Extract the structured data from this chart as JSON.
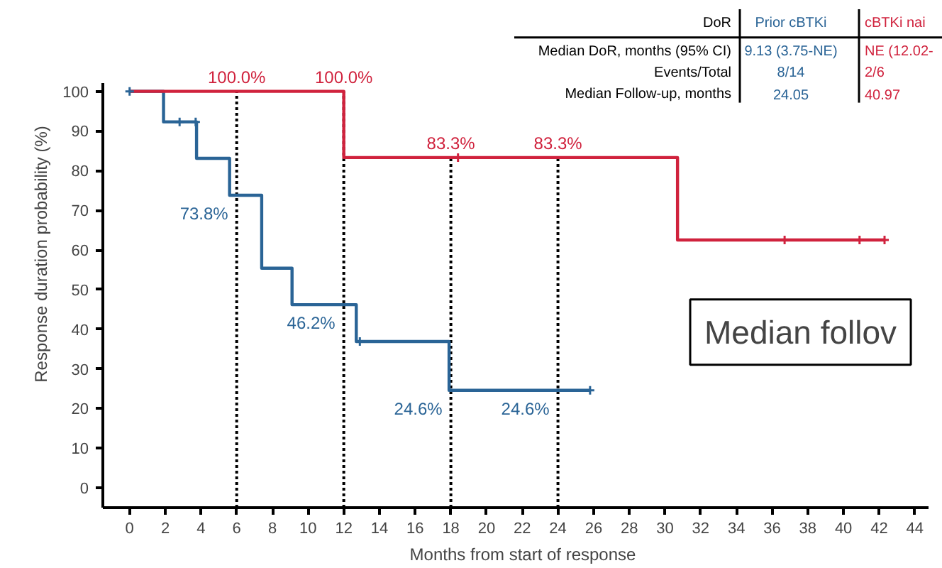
{
  "chart_data": {
    "type": "step",
    "xlabel": "Months from start of response",
    "ylabel": "Response duration probability (%)",
    "xlim": [
      -1.5,
      44.8
    ],
    "ylim": [
      -5,
      102
    ],
    "xticks": [
      0,
      2,
      4,
      6,
      8,
      10,
      12,
      14,
      16,
      18,
      20,
      22,
      24,
      26,
      28,
      30,
      32,
      34,
      36,
      38,
      40,
      42,
      44
    ],
    "yticks": [
      0,
      10,
      20,
      30,
      40,
      50,
      60,
      70,
      80,
      90,
      100
    ],
    "grid": false,
    "line_style": "solid",
    "series": [
      {
        "color": "#2a6496",
        "x": [
          0,
          1.9,
          3.75,
          5.6,
          7.4,
          9.1,
          12.7,
          17.9,
          25.8
        ],
        "values": [
          100,
          92.3,
          83.1,
          73.8,
          55.4,
          46.2,
          36.9,
          24.6,
          24.6
        ]
      },
      {
        "color": "#d0223d",
        "x": [
          0,
          12,
          30.7,
          42.3
        ],
        "values": [
          100,
          83.3,
          62.5,
          62.5
        ]
      },
      {
        "type": "scatter",
        "marker": "cross",
        "color": "#2a6496",
        "x": [
          0,
          2.8,
          3.7,
          12.9,
          25.8
        ],
        "values": [
          100,
          92.3,
          92.3,
          36.9,
          24.6
        ]
      },
      {
        "type": "scatter",
        "marker": "cross",
        "color": "#d0223d",
        "x": [
          18.4,
          36.7,
          40.9,
          42.3
        ],
        "values": [
          83.3,
          62.5,
          62.5,
          62.5
        ]
      }
    ],
    "ref_lines": [
      {
        "axis": "x",
        "value": 6,
        "color": "#000000",
        "line_style": "dotted"
      },
      {
        "axis": "x",
        "value": 12,
        "color": "#000000",
        "line_style": "dotted"
      },
      {
        "axis": "x",
        "value": 18,
        "color": "#000000",
        "line_style": "dotted"
      },
      {
        "axis": "x",
        "value": 24,
        "color": "#000000",
        "line_style": "dotted"
      }
    ],
    "annotations": [
      "DoR",
      "Prior cBTKi",
      "cBTKi nai",
      "Median DoR, months (95% CI)",
      "9.13 (3.75-NE)",
      "NE (12.02-",
      "Events/Total",
      "8/14",
      "2/6",
      "Median Follow-up, months",
      "24.05",
      "40.97",
      "Median follov",
      {
        "text": "100.0%",
        "x": 6,
        "y": 100
      },
      {
        "text": "100.0%",
        "x": 12,
        "y": 100
      },
      {
        "text": "83.3%",
        "x": 18,
        "y": 83.3
      },
      {
        "text": "83.3%",
        "x": 24,
        "y": 83.3
      },
      {
        "text": "73.8%",
        "x": 6,
        "y": 73.8
      },
      {
        "text": "46.2%",
        "x": 12,
        "y": 46.2
      },
      {
        "text": "24.6%",
        "x": 18,
        "y": 24.6
      },
      {
        "text": "24.6%",
        "x": 24,
        "y": 24.6
      }
    ]
  }
}
